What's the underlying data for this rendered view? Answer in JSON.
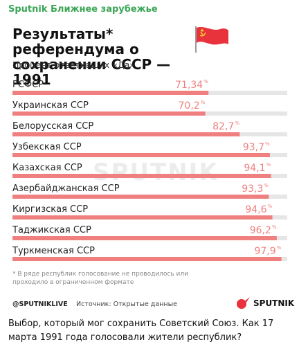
{
  "channel_name": "Sputnik Ближнее зарубежье",
  "title": "Результаты* референдума о сохранении СССР — 1991",
  "subtitle": "Процент ответивших «Да»",
  "watermark": "SPUTNIK",
  "footnote": "* В ряде республик голосование не проводилось или проходило в ограниченном формате",
  "footer": {
    "handle": "@SPUTNIKLIVE",
    "source": "Источник: Открытые данные",
    "logo_text": "SPUTNIK"
  },
  "caption": "Выбор, который мог сохранить Советский Союз. Как 17 марта 1991 года голосовали жители республик?",
  "colors": {
    "bar_fill": "#f08080",
    "bar_track": "#e6e6e6",
    "value_text": "#f08080",
    "brand_red": "#e8323c",
    "channel_green": "#3aa655"
  },
  "icons": {
    "flag": "soviet-flag-icon",
    "logo": "sputnik-logo-icon"
  },
  "chart_data": {
    "type": "bar",
    "orientation": "horizontal",
    "categories": [
      "РСФСР",
      "Украинская ССР",
      "Белорусская ССР",
      "Узбекская ССР",
      "Казахская ССР",
      "Азербайджанская ССР",
      "Киргизская ССР",
      "Таджикская ССР",
      "Туркменская ССР"
    ],
    "values": [
      71.34,
      70.2,
      82.7,
      93.7,
      94.1,
      93.3,
      94.6,
      96.2,
      97.9
    ],
    "value_labels": [
      "71,34",
      "70,2",
      "82,7",
      "93,7",
      "94,1",
      "93,3",
      "94,6",
      "96,2",
      "97,9"
    ],
    "unit": "%",
    "xlim": [
      0,
      100
    ],
    "grid": false,
    "legend": "none"
  }
}
